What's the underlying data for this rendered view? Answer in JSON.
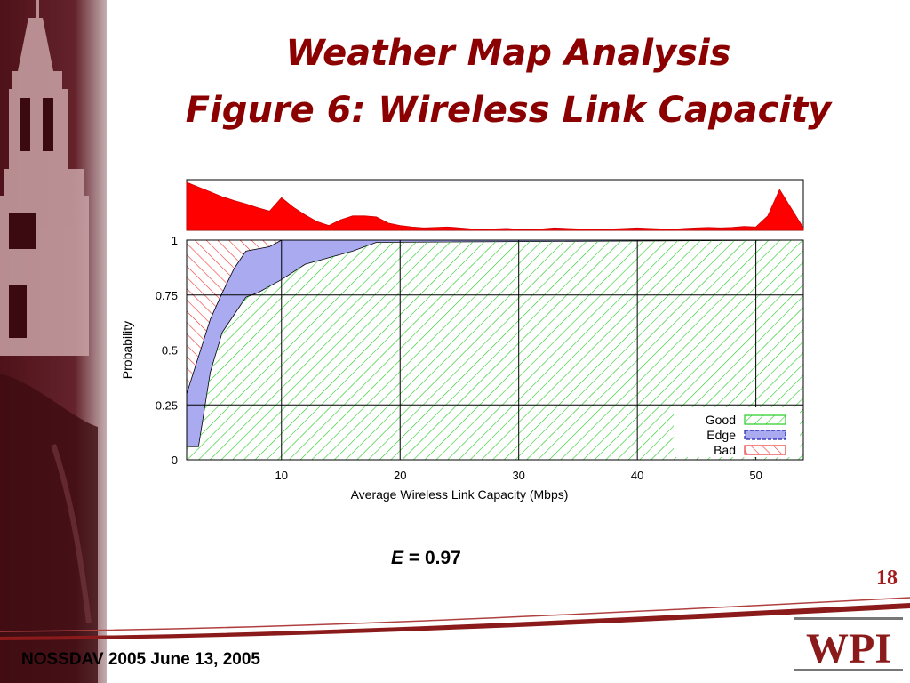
{
  "slide": {
    "title_line1": "Weather Map Analysis",
    "title_line2": "Figure 6: Wireless Link Capacity",
    "equation_var": "E",
    "equation_rest": " = 0.97",
    "page_number": "18",
    "footer": "NOSSDAV 2005 June 13, 2005",
    "logo_text": "WPI",
    "colors": {
      "title": "#8b0000",
      "page_number": "#a11b1b",
      "good": "#22cc22",
      "edge": "#aaaaf0",
      "bad": "#ee3333",
      "histogram": "#ff0000"
    }
  },
  "chart_data": {
    "type": "area",
    "xlabel": "Average Wireless Link Capacity (Mbps)",
    "ylabel": "Probability",
    "xlim": [
      2,
      54
    ],
    "ylim": [
      0,
      1
    ],
    "xticks": [
      10,
      20,
      30,
      40,
      50
    ],
    "yticks": [
      0,
      0.25,
      0.5,
      0.75,
      1
    ],
    "ytick_labels": [
      "0",
      "0.25",
      "0.5",
      "0.75",
      "1"
    ],
    "grid": true,
    "legend": {
      "placement": "bottom-right",
      "entries": [
        "Good",
        "Edge",
        "Bad"
      ]
    },
    "series": [
      {
        "name": "Bad",
        "fill": "red hatched",
        "region": "above upper boundary"
      },
      {
        "name": "Edge",
        "fill": "blue",
        "region": "between boundaries"
      },
      {
        "name": "Good",
        "fill": "green hatched",
        "region": "below lower boundary"
      }
    ],
    "upper_boundary": {
      "x": [
        2,
        3,
        4,
        5,
        6,
        7,
        9,
        10,
        54
      ],
      "y": [
        0.3,
        0.47,
        0.64,
        0.76,
        0.87,
        0.95,
        0.97,
        1.0,
        1.0
      ]
    },
    "lower_boundary": {
      "x": [
        2,
        3,
        4,
        5,
        6,
        7,
        8,
        10,
        12,
        14,
        16,
        18,
        54
      ],
      "y": [
        0.06,
        0.06,
        0.4,
        0.58,
        0.66,
        0.74,
        0.76,
        0.82,
        0.89,
        0.92,
        0.95,
        0.99,
        1.0
      ]
    },
    "histogram": {
      "x": [
        2,
        3,
        4,
        5,
        6,
        7,
        8,
        9,
        10,
        11,
        12,
        13,
        14,
        15,
        16,
        17,
        18,
        19,
        20,
        21,
        22,
        23,
        24,
        25,
        26,
        27,
        28,
        29,
        30,
        31,
        32,
        33,
        34,
        35,
        36,
        37,
        38,
        39,
        40,
        41,
        42,
        43,
        44,
        45,
        46,
        47,
        48,
        49,
        50,
        51,
        52,
        53,
        54
      ],
      "y": [
        1.0,
        0.9,
        0.8,
        0.7,
        0.62,
        0.55,
        0.47,
        0.4,
        0.68,
        0.48,
        0.32,
        0.18,
        0.1,
        0.22,
        0.3,
        0.3,
        0.28,
        0.15,
        0.1,
        0.07,
        0.05,
        0.06,
        0.07,
        0.05,
        0.03,
        0.02,
        0.03,
        0.04,
        0.02,
        0.02,
        0.03,
        0.05,
        0.04,
        0.03,
        0.03,
        0.02,
        0.03,
        0.04,
        0.05,
        0.04,
        0.03,
        0.02,
        0.04,
        0.05,
        0.06,
        0.05,
        0.06,
        0.08,
        0.07,
        0.3,
        0.85,
        0.45,
        0.05
      ]
    }
  }
}
